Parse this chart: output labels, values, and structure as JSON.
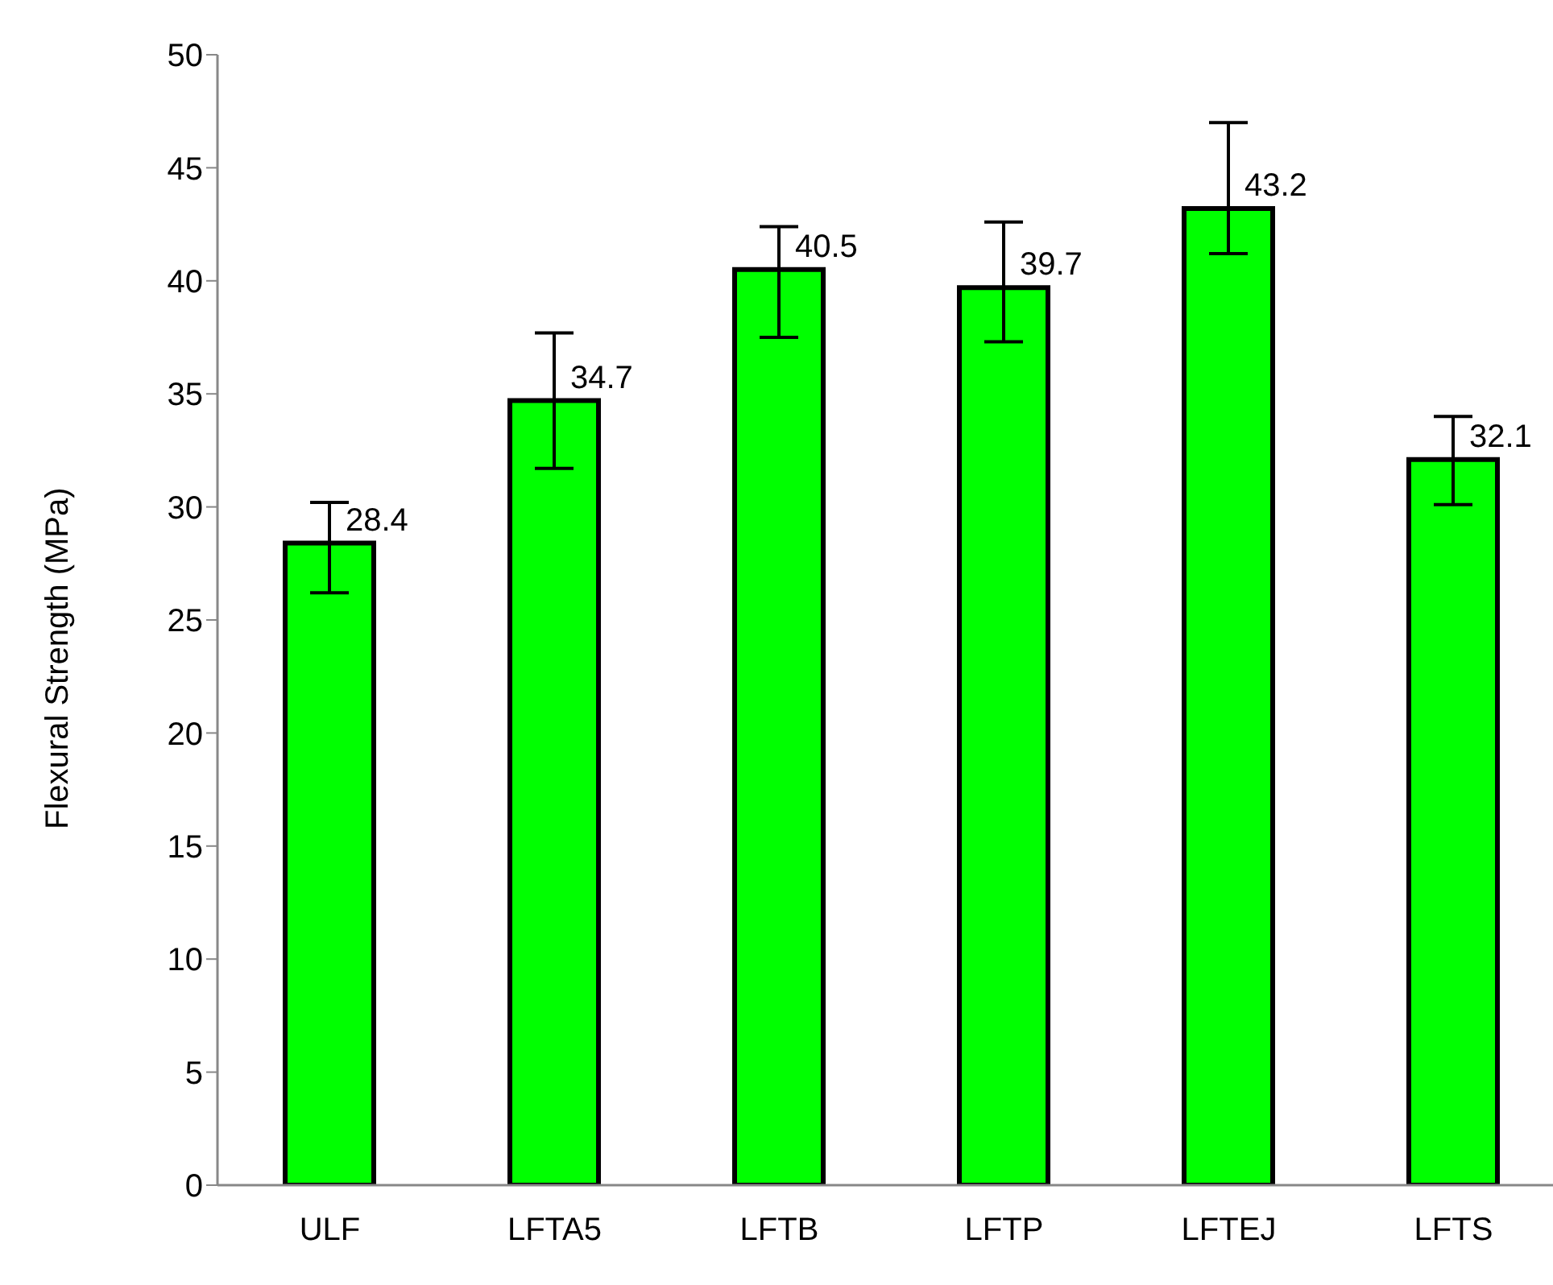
{
  "chart_data": {
    "type": "bar",
    "ylabel": "Flexural Strength (MPa)",
    "categories": [
      "ULF",
      "LFTA5",
      "LFTB",
      "LFTP",
      "LFTEJ",
      "LFTS"
    ],
    "values": [
      28.4,
      34.7,
      40.5,
      39.7,
      43.2,
      32.1
    ],
    "errors": [
      [
        26.2,
        30.2
      ],
      [
        31.7,
        37.7
      ],
      [
        37.5,
        42.4
      ],
      [
        37.3,
        42.6
      ],
      [
        41.2,
        47.0
      ],
      [
        30.1,
        34.0
      ]
    ],
    "color": "#00ff00",
    "data_labels": true,
    "grid": false,
    "legend": false,
    "ylim": [
      0,
      50
    ],
    "yticks": [
      0,
      5,
      10,
      15,
      20,
      25,
      30,
      35,
      40,
      45,
      50
    ]
  }
}
